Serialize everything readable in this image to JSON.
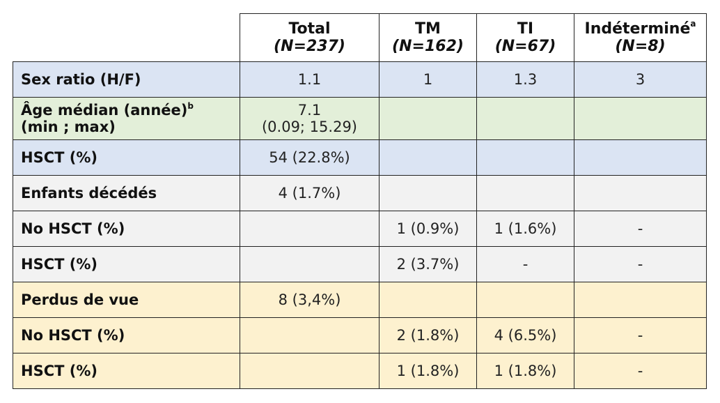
{
  "header": {
    "cols": [
      {
        "name": "Total",
        "n": "(N=237)"
      },
      {
        "name": "TM",
        "n": "(N=162)"
      },
      {
        "name": "TI",
        "n": "(N=67)"
      },
      {
        "name": "Indéterminé",
        "sup": "a",
        "n": "(N=8)"
      }
    ]
  },
  "rows": [
    {
      "label": "Sex ratio (H/F)",
      "cells": [
        "1.1",
        "1",
        "1.3",
        "3"
      ]
    },
    {
      "label_line1": "Âge médian (année)",
      "label_sup": "b",
      "label_line2": "(min ; max)",
      "cells_line1": "7.1",
      "cells_line2": "(0.09; 15.29)"
    },
    {
      "label": "HSCT (%)",
      "cells": [
        "54 (22.8%)",
        "",
        "",
        ""
      ]
    },
    {
      "label": "Enfants décédés",
      "cells": [
        "4 (1.7%)",
        "",
        "",
        ""
      ]
    },
    {
      "label": "No HSCT (%)",
      "cells": [
        "",
        "1 (0.9%)",
        "1 (1.6%)",
        "-"
      ]
    },
    {
      "label": "HSCT (%)",
      "cells": [
        "",
        "2 (3.7%)",
        "-",
        "-"
      ]
    },
    {
      "label": "Perdus de vue",
      "cells": [
        "8 (3,4%)",
        "",
        "",
        ""
      ]
    },
    {
      "label": "No HSCT (%)",
      "cells": [
        "",
        "2 (1.8%)",
        "4 (6.5%)",
        "-"
      ]
    },
    {
      "label": "HSCT (%)",
      "cells": [
        "",
        "1 (1.8%)",
        "1 (1.8%)",
        "-"
      ]
    }
  ],
  "colors": {
    "blue": "#dbe4f3",
    "green": "#e3efd9",
    "gray": "#f2f2f2",
    "yellow": "#fdf1cf",
    "border": "#222222"
  }
}
